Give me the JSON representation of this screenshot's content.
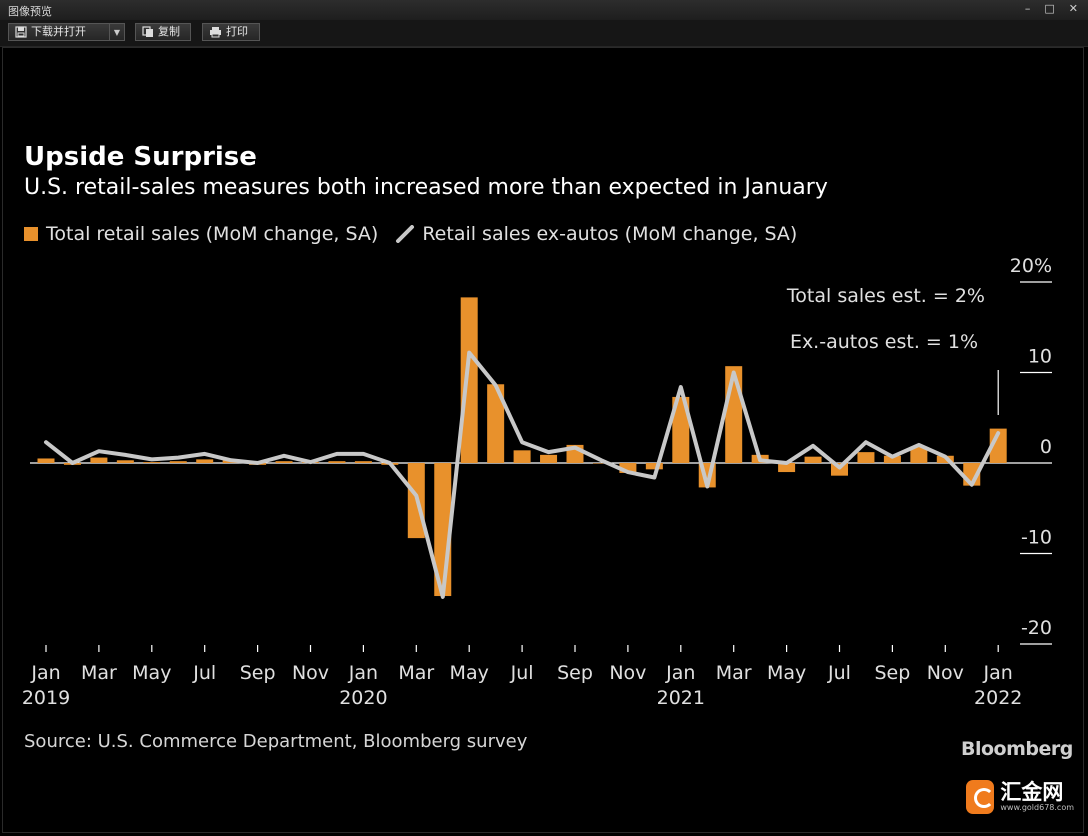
{
  "window": {
    "title": "图像预览"
  },
  "toolbar": {
    "download_open": "下载并打开",
    "copy": "复制",
    "print": "打印"
  },
  "colors": {
    "bar": "#e8912c",
    "line": "#c8c8c8",
    "background": "#000000"
  },
  "chart_data": {
    "type": "bar",
    "title": "Upside Surprise",
    "subtitle": "U.S. retail-sales measures both increased more than expected in January",
    "source": "Source: U.S. Commerce Department, Bloomberg survey",
    "brand": "Bloomberg",
    "ylim": [
      -20,
      20
    ],
    "yticks": [
      20,
      10,
      0,
      -10,
      -20
    ],
    "ytick_labels": [
      "20%",
      "10",
      "0",
      "-10",
      "-20"
    ],
    "y_axis_position": "right",
    "x_labels": [
      {
        "index": 0,
        "month": "Jan",
        "year": "2019"
      },
      {
        "index": 2,
        "month": "Mar",
        "year": ""
      },
      {
        "index": 4,
        "month": "May",
        "year": ""
      },
      {
        "index": 6,
        "month": "Jul",
        "year": ""
      },
      {
        "index": 8,
        "month": "Sep",
        "year": ""
      },
      {
        "index": 10,
        "month": "Nov",
        "year": ""
      },
      {
        "index": 12,
        "month": "Jan",
        "year": "2020"
      },
      {
        "index": 14,
        "month": "Mar",
        "year": ""
      },
      {
        "index": 16,
        "month": "May",
        "year": ""
      },
      {
        "index": 18,
        "month": "Jul",
        "year": ""
      },
      {
        "index": 20,
        "month": "Sep",
        "year": ""
      },
      {
        "index": 22,
        "month": "Nov",
        "year": ""
      },
      {
        "index": 24,
        "month": "Jan",
        "year": "2021"
      },
      {
        "index": 26,
        "month": "Mar",
        "year": ""
      },
      {
        "index": 28,
        "month": "May",
        "year": ""
      },
      {
        "index": 30,
        "month": "Jul",
        "year": ""
      },
      {
        "index": 32,
        "month": "Sep",
        "year": ""
      },
      {
        "index": 34,
        "month": "Nov",
        "year": ""
      },
      {
        "index": 36,
        "month": "Jan",
        "year": "2022"
      }
    ],
    "categories": [
      "Jan 2019",
      "Feb 2019",
      "Mar 2019",
      "Apr 2019",
      "May 2019",
      "Jun 2019",
      "Jul 2019",
      "Aug 2019",
      "Sep 2019",
      "Oct 2019",
      "Nov 2019",
      "Dec 2019",
      "Jan 2020",
      "Feb 2020",
      "Mar 2020",
      "Apr 2020",
      "May 2020",
      "Jun 2020",
      "Jul 2020",
      "Aug 2020",
      "Sep 2020",
      "Oct 2020",
      "Nov 2020",
      "Dec 2020",
      "Jan 2021",
      "Feb 2021",
      "Mar 2021",
      "Apr 2021",
      "May 2021",
      "Jun 2021",
      "Jul 2021",
      "Aug 2021",
      "Sep 2021",
      "Oct 2021",
      "Nov 2021",
      "Dec 2021",
      "Jan 2022"
    ],
    "series": [
      {
        "name": "Total retail sales (MoM change, SA)",
        "type": "bar",
        "values": [
          0.5,
          -0.2,
          0.6,
          0.3,
          0.1,
          0.2,
          0.4,
          0.3,
          -0.2,
          0.2,
          0.1,
          0.2,
          0.2,
          -0.2,
          -8.3,
          -14.7,
          18.3,
          8.7,
          1.4,
          0.9,
          2.0,
          0.0,
          -1.1,
          -0.7,
          7.3,
          -2.7,
          10.7,
          0.9,
          -1.0,
          0.7,
          -1.4,
          1.2,
          0.8,
          1.8,
          0.8,
          -2.5,
          3.8
        ]
      },
      {
        "name": "Retail sales ex-autos (MoM change, SA)",
        "type": "line",
        "values": [
          2.3,
          0.0,
          1.3,
          0.9,
          0.4,
          0.6,
          1.0,
          0.3,
          0.0,
          0.8,
          0.1,
          1.0,
          1.0,
          0.0,
          -3.6,
          -14.8,
          12.2,
          8.6,
          2.3,
          1.2,
          1.7,
          0.3,
          -1.0,
          -1.6,
          8.4,
          -2.6,
          10.0,
          0.3,
          0.0,
          1.9,
          -0.5,
          2.3,
          0.7,
          2.0,
          0.7,
          -2.4,
          3.3
        ]
      }
    ],
    "annotations": [
      {
        "text": "Total sales est. = 2%",
        "x": "Jan 2022",
        "y": 2
      },
      {
        "text": "Ex.-autos est. = 1%",
        "x": "Jan 2022",
        "y": 1
      }
    ]
  }
}
